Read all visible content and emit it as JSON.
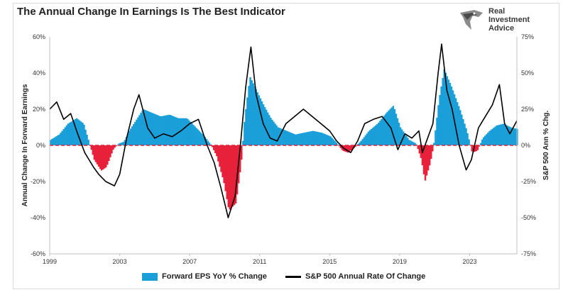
{
  "title": "The Annual Change In Earnings Is The Best Indicator",
  "logo": {
    "line1": "Real",
    "line2": "Investment",
    "line3": "Advice",
    "icon": "eagle-head-logo-icon"
  },
  "colors": {
    "positive_fill": "#1a9fd9",
    "negative_fill": "#e8213a",
    "line": "#000000",
    "zero_line": "#e8213a"
  },
  "chart_data": {
    "type": "area",
    "title": "The Annual Change In Earnings Is The Best Indicator",
    "x_ticks": [
      "1999",
      "2003",
      "2007",
      "2011",
      "2015",
      "2019",
      "2023"
    ],
    "xlim": [
      1999,
      2025.7
    ],
    "left_axis": {
      "label": "Annual Change In Forward Earnings",
      "ylim": [
        -60,
        60
      ],
      "ticks": [
        "-60%",
        "-40%",
        "-20%",
        "0%",
        "20%",
        "40%",
        "60%"
      ]
    },
    "right_axis": {
      "label": "S&P 500  Ann % Chg.",
      "ylim": [
        -75,
        75
      ],
      "ticks": [
        "-75%",
        "-50%",
        "-25%",
        "0%",
        "25%",
        "50%",
        "75%"
      ]
    },
    "grid": false,
    "legend": "bottom",
    "series": [
      {
        "name": "Forward EPS YoY % Change",
        "axis": "left",
        "style": "area",
        "points": [
          [
            1999.0,
            3
          ],
          [
            1999.5,
            6
          ],
          [
            2000.0,
            12
          ],
          [
            2000.5,
            15
          ],
          [
            2000.9,
            12
          ],
          [
            2001.2,
            2
          ],
          [
            2001.5,
            -8
          ],
          [
            2001.9,
            -14
          ],
          [
            2002.2,
            -12
          ],
          [
            2002.6,
            -2
          ],
          [
            2002.9,
            1
          ],
          [
            2003.2,
            2
          ],
          [
            2003.5,
            8
          ],
          [
            2003.9,
            14
          ],
          [
            2004.3,
            20
          ],
          [
            2004.8,
            18
          ],
          [
            2005.3,
            16
          ],
          [
            2005.8,
            17
          ],
          [
            2006.3,
            15
          ],
          [
            2006.8,
            15
          ],
          [
            2007.3,
            10
          ],
          [
            2007.8,
            5
          ],
          [
            2008.2,
            0
          ],
          [
            2008.5,
            -6
          ],
          [
            2008.9,
            -20
          ],
          [
            2009.2,
            -36
          ],
          [
            2009.6,
            -32
          ],
          [
            2009.9,
            -10
          ],
          [
            2010.1,
            15
          ],
          [
            2010.4,
            38
          ],
          [
            2010.8,
            30
          ],
          [
            2011.2,
            22
          ],
          [
            2011.6,
            15
          ],
          [
            2012.0,
            10
          ],
          [
            2012.5,
            8
          ],
          [
            2013.0,
            6
          ],
          [
            2013.5,
            7
          ],
          [
            2014.0,
            8
          ],
          [
            2014.5,
            7
          ],
          [
            2015.0,
            5
          ],
          [
            2015.3,
            2
          ],
          [
            2015.7,
            -3
          ],
          [
            2016.0,
            -4
          ],
          [
            2016.4,
            -1
          ],
          [
            2016.8,
            3
          ],
          [
            2017.2,
            8
          ],
          [
            2017.7,
            12
          ],
          [
            2018.2,
            18
          ],
          [
            2018.6,
            22
          ],
          [
            2019.0,
            10
          ],
          [
            2019.5,
            3
          ],
          [
            2019.9,
            1
          ],
          [
            2020.2,
            -8
          ],
          [
            2020.4,
            -20
          ],
          [
            2020.7,
            -10
          ],
          [
            2020.9,
            0
          ],
          [
            2021.2,
            25
          ],
          [
            2021.5,
            42
          ],
          [
            2021.9,
            33
          ],
          [
            2022.4,
            20
          ],
          [
            2022.8,
            8
          ],
          [
            2023.1,
            -4
          ],
          [
            2023.4,
            -3
          ],
          [
            2023.7,
            4
          ],
          [
            2024.1,
            8
          ],
          [
            2024.5,
            11
          ],
          [
            2024.9,
            12
          ],
          [
            2025.3,
            10
          ],
          [
            2025.7,
            9
          ]
        ]
      },
      {
        "name": "S&P 500 Annual Rate Of Change",
        "axis": "right",
        "style": "line",
        "points": [
          [
            1999.0,
            25
          ],
          [
            1999.4,
            30
          ],
          [
            1999.8,
            18
          ],
          [
            2000.2,
            22
          ],
          [
            2000.6,
            8
          ],
          [
            2001.0,
            -5
          ],
          [
            2001.5,
            -15
          ],
          [
            2001.8,
            -20
          ],
          [
            2002.2,
            -25
          ],
          [
            2002.7,
            -28
          ],
          [
            2003.0,
            -20
          ],
          [
            2003.4,
            5
          ],
          [
            2003.8,
            25
          ],
          [
            2004.1,
            35
          ],
          [
            2004.6,
            12
          ],
          [
            2005.0,
            5
          ],
          [
            2005.5,
            8
          ],
          [
            2006.0,
            6
          ],
          [
            2006.5,
            10
          ],
          [
            2007.0,
            15
          ],
          [
            2007.5,
            18
          ],
          [
            2008.0,
            0
          ],
          [
            2008.4,
            -12
          ],
          [
            2008.8,
            -30
          ],
          [
            2009.2,
            -50
          ],
          [
            2009.6,
            -35
          ],
          [
            2009.9,
            0
          ],
          [
            2010.2,
            40
          ],
          [
            2010.5,
            68
          ],
          [
            2010.8,
            35
          ],
          [
            2011.2,
            15
          ],
          [
            2011.6,
            5
          ],
          [
            2012.0,
            3
          ],
          [
            2012.5,
            15
          ],
          [
            2013.0,
            20
          ],
          [
            2013.5,
            25
          ],
          [
            2014.0,
            20
          ],
          [
            2014.5,
            15
          ],
          [
            2015.0,
            10
          ],
          [
            2015.4,
            3
          ],
          [
            2015.8,
            -2
          ],
          [
            2016.2,
            -5
          ],
          [
            2016.6,
            3
          ],
          [
            2017.0,
            15
          ],
          [
            2017.5,
            18
          ],
          [
            2018.0,
            20
          ],
          [
            2018.5,
            12
          ],
          [
            2018.9,
            -3
          ],
          [
            2019.3,
            8
          ],
          [
            2019.7,
            5
          ],
          [
            2020.1,
            10
          ],
          [
            2020.3,
            -5
          ],
          [
            2020.6,
            5
          ],
          [
            2020.9,
            15
          ],
          [
            2021.2,
            50
          ],
          [
            2021.4,
            70
          ],
          [
            2021.7,
            38
          ],
          [
            2022.0,
            25
          ],
          [
            2022.4,
            0
          ],
          [
            2022.8,
            -17
          ],
          [
            2023.1,
            -10
          ],
          [
            2023.5,
            12
          ],
          [
            2023.9,
            20
          ],
          [
            2024.3,
            28
          ],
          [
            2024.7,
            42
          ],
          [
            2025.0,
            15
          ],
          [
            2025.3,
            8
          ],
          [
            2025.7,
            17
          ]
        ]
      }
    ],
    "zero_line_style": "dashed"
  }
}
